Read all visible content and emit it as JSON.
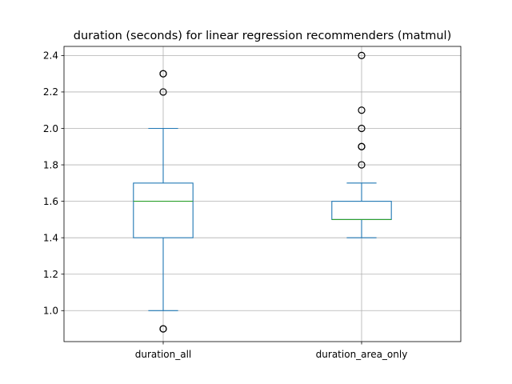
{
  "chart_data": {
    "type": "box",
    "title": "duration (seconds) for linear regression recommenders (matmul)",
    "xlabel": "",
    "ylabel": "",
    "ylim": [
      0.83,
      2.45
    ],
    "yticks": [
      1.0,
      1.2,
      1.4,
      1.6,
      1.8,
      2.0,
      2.2,
      2.4
    ],
    "ytick_labels": [
      "1.0",
      "1.2",
      "1.4",
      "1.6",
      "1.8",
      "2.0",
      "2.2",
      "2.4"
    ],
    "grid": true,
    "colors": {
      "box": "#1f77b4",
      "median": "#2ca02c",
      "flier": "#000000",
      "grid": "#b0b0b0"
    },
    "categories": [
      "duration_all",
      "duration_area_only"
    ],
    "boxes": [
      {
        "name": "duration_all",
        "whisker_low": 1.0,
        "q1": 1.4,
        "median": 1.6,
        "q3": 1.7,
        "whisker_high": 2.0,
        "fliers": [
          0.9,
          0.9,
          2.2,
          2.3,
          2.3
        ]
      },
      {
        "name": "duration_area_only",
        "whisker_low": 1.4,
        "q1": 1.5,
        "median": 1.5,
        "q3": 1.6,
        "whisker_high": 1.7,
        "fliers": [
          1.8,
          1.9,
          1.9,
          2.0,
          2.1,
          2.4
        ]
      }
    ]
  }
}
